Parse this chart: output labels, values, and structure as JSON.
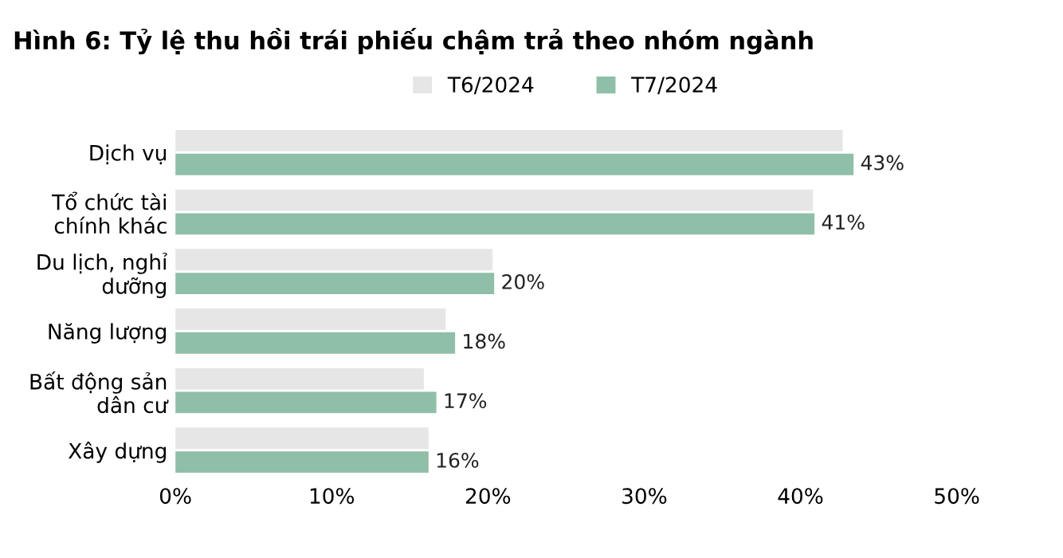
{
  "chart_data": {
    "type": "bar",
    "orientation": "horizontal",
    "title": "Hình 6: Tỷ lệ thu hồi trái phiếu chậm trả theo nhóm ngành",
    "categories": [
      "Dịch vụ",
      "Tổ chức tài\nchính khác",
      "Du lịch, nghỉ\ndưỡng",
      "Năng lượng",
      "Bất động sản\ndân cư",
      "Xây dựng"
    ],
    "series": [
      {
        "name": "T6/2024",
        "color": "#e6e6e6",
        "values": [
          42.7,
          40.8,
          20.3,
          17.3,
          15.9,
          16.2
        ]
      },
      {
        "name": "T7/2024",
        "color": "#8fbfa8",
        "values": [
          43.4,
          40.9,
          20.4,
          17.9,
          16.7,
          16.2
        ],
        "value_labels": [
          "43%",
          "41%",
          "20%",
          "18%",
          "17%",
          "16%"
        ]
      }
    ],
    "xlim": [
      0,
      50
    ],
    "xticks": [
      {
        "value": 0,
        "label": "0%"
      },
      {
        "value": 10,
        "label": "10%"
      },
      {
        "value": 20,
        "label": "20%"
      },
      {
        "value": 30,
        "label": "30%"
      },
      {
        "value": 40,
        "label": "40%"
      },
      {
        "value": 50,
        "label": "50%"
      }
    ],
    "legend": "top",
    "grid": false
  }
}
